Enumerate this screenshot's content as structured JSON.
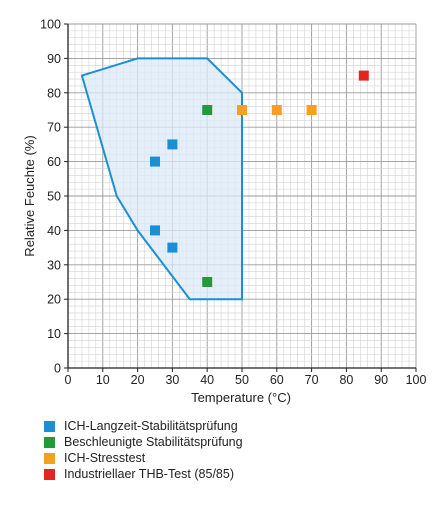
{
  "chart_data": {
    "type": "scatter",
    "xlabel": "Temperature (°C)",
    "ylabel": "Relative Feuchte (%)",
    "xlim": [
      0,
      100
    ],
    "ylim": [
      0,
      100
    ],
    "xticks": [
      "0",
      "10",
      "20",
      "30",
      "40",
      "50",
      "60",
      "70",
      "80",
      "90",
      "100"
    ],
    "yticks": [
      "0",
      "10",
      "20",
      "30",
      "40",
      "50",
      "60",
      "70",
      "80",
      "90",
      "100"
    ],
    "minor_grid_step": 2,
    "region": {
      "fill": "#dceaf7",
      "stroke": "#1a8fd6",
      "points": [
        [
          4,
          85
        ],
        [
          20,
          90
        ],
        [
          40,
          90
        ],
        [
          50,
          80
        ],
        [
          50,
          20
        ],
        [
          35,
          20
        ],
        [
          20,
          40
        ],
        [
          14,
          50
        ],
        [
          4,
          85
        ]
      ]
    },
    "series": [
      {
        "name": "ICH-Langzeit-Stabilitätsprüfung",
        "color": "#1a8fd6",
        "points": [
          [
            25,
            60
          ],
          [
            30,
            65
          ],
          [
            25,
            40
          ],
          [
            30,
            35
          ]
        ]
      },
      {
        "name": "Beschleunigte Stabilitätsprüfung",
        "color": "#239a3a",
        "points": [
          [
            40,
            75
          ],
          [
            40,
            25
          ]
        ]
      },
      {
        "name": "ICH-Stresstest",
        "color": "#f5a023",
        "points": [
          [
            50,
            75
          ],
          [
            60,
            75
          ],
          [
            70,
            75
          ]
        ]
      },
      {
        "name": "Industriellaer THB-Test (85/85)",
        "color": "#e0261f",
        "points": [
          [
            85,
            85
          ]
        ]
      }
    ]
  }
}
